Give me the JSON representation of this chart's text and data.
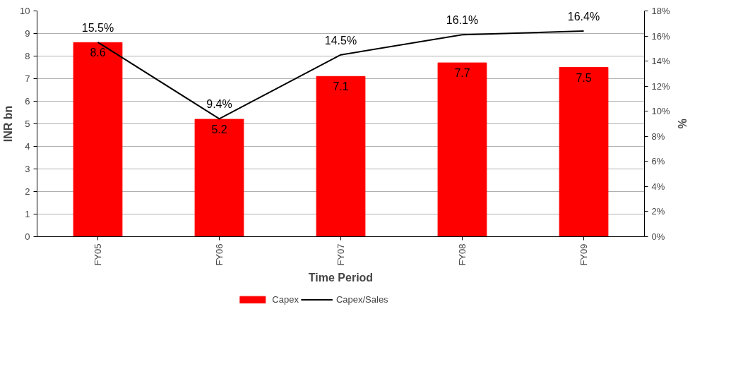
{
  "chart_data": {
    "type": "bar",
    "xlabel": "Time Period",
    "ylabel": "INR bn",
    "y2label": "%",
    "categories": [
      "FY05",
      "FY06",
      "FY07",
      "FY08",
      "FY09"
    ],
    "series": [
      {
        "name": "Capex",
        "color": "#ff0000",
        "values": [
          8.6,
          5.2,
          7.1,
          7.7,
          7.5
        ],
        "value_labels": [
          "8.6",
          "5.2",
          "7.1",
          "7.7",
          "7.5"
        ]
      },
      {
        "name": "Capex/Sales",
        "type": "line",
        "axis": "y2",
        "color": "#000000",
        "values": [
          15.5,
          9.4,
          14.5,
          16.1,
          16.4
        ],
        "value_labels": [
          "15.5%",
          "9.4%",
          "14.5%",
          "16.1%",
          "16.4%"
        ]
      }
    ],
    "ylim": [
      0,
      10
    ],
    "yticks": [
      0,
      1,
      2,
      3,
      4,
      5,
      6,
      7,
      8,
      9,
      10
    ],
    "y2lim": [
      0,
      18
    ],
    "y2ticks": [
      {
        "value": 0,
        "label": "0%"
      },
      {
        "value": 2,
        "label": "2%"
      },
      {
        "value": 4,
        "label": "4%"
      },
      {
        "value": 6,
        "label": "6%"
      },
      {
        "value": 8,
        "label": "8%"
      },
      {
        "value": 10,
        "label": "10%"
      },
      {
        "value": 12,
        "label": "12%"
      },
      {
        "value": 14,
        "label": "14%"
      },
      {
        "value": 16,
        "label": "16%"
      },
      {
        "value": 18,
        "label": "18%"
      }
    ],
    "grid": "y",
    "legend": "bottom",
    "marker": "none",
    "line_style": "solid"
  }
}
